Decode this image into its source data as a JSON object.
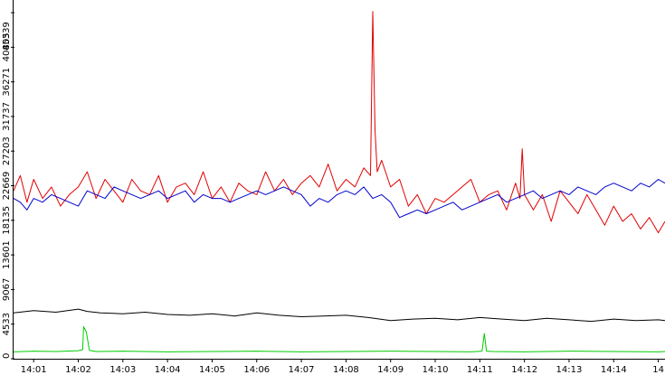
{
  "chart_data": {
    "type": "line",
    "title": "",
    "xlabel": "",
    "ylabel": "",
    "x_tick_labels": [
      "14:01",
      "14:02",
      "14:03",
      "14:04",
      "14:05",
      "14:06",
      "14:07",
      "14:08",
      "14:09",
      "14:10",
      "14:11",
      "14:12",
      "14:13",
      "14:14",
      "14"
    ],
    "x_tick_values": [
      1,
      2,
      3,
      4,
      5,
      6,
      7,
      8,
      9,
      10,
      11,
      12,
      13,
      14,
      15
    ],
    "xlim": [
      0.55,
      15.15
    ],
    "y_tick_labels": [
      "0",
      "4533",
      "9067",
      "13601",
      "18135",
      "22669",
      "27203",
      "31737",
      "36271",
      "40805",
      "45339"
    ],
    "y_tick_values": [
      0,
      4533,
      9067,
      13601,
      18135,
      22669,
      27203,
      31737,
      36271,
      40805,
      45339
    ],
    "ylim": [
      0,
      47000
    ],
    "grid": false,
    "legend": "none",
    "series": [
      {
        "color": "#e00000",
        "x": [
          0.55,
          0.7,
          0.85,
          1.0,
          1.2,
          1.4,
          1.6,
          1.8,
          2.0,
          2.2,
          2.4,
          2.6,
          2.8,
          3.0,
          3.2,
          3.4,
          3.6,
          3.8,
          4.0,
          4.2,
          4.4,
          4.6,
          4.8,
          5.0,
          5.2,
          5.4,
          5.6,
          5.8,
          6.0,
          6.2,
          6.4,
          6.6,
          6.8,
          7.0,
          7.2,
          7.4,
          7.6,
          7.8,
          8.0,
          8.2,
          8.4,
          8.55,
          8.6,
          8.65,
          8.7,
          8.8,
          9.0,
          9.2,
          9.4,
          9.6,
          9.8,
          10.0,
          10.2,
          10.4,
          10.6,
          10.8,
          11.0,
          11.2,
          11.4,
          11.6,
          11.8,
          11.9,
          11.95,
          12.0,
          12.2,
          12.4,
          12.6,
          12.8,
          13.0,
          13.2,
          13.4,
          13.6,
          13.8,
          14.0,
          14.2,
          14.4,
          14.6,
          14.8,
          15.0,
          15.15
        ],
        "y": [
          22000,
          24000,
          20500,
          23500,
          21000,
          22500,
          20000,
          21500,
          22500,
          24500,
          21000,
          23500,
          22000,
          20500,
          23500,
          22000,
          21500,
          24000,
          20500,
          22500,
          23000,
          21500,
          24500,
          21000,
          22500,
          20500,
          23000,
          22000,
          21500,
          24500,
          22000,
          23500,
          21500,
          23000,
          24000,
          22500,
          25500,
          22000,
          23500,
          22500,
          25000,
          24000,
          45500,
          30000,
          24500,
          26000,
          22500,
          23500,
          20000,
          21500,
          19000,
          21000,
          20500,
          21500,
          22500,
          23500,
          20500,
          21500,
          22000,
          19500,
          23000,
          21000,
          27500,
          21500,
          19500,
          21500,
          18000,
          22000,
          20500,
          19000,
          21500,
          19500,
          17500,
          20000,
          18000,
          19000,
          17000,
          18500,
          16500,
          18000
        ]
      },
      {
        "color": "#0000cc",
        "x": [
          0.55,
          0.7,
          0.85,
          1.0,
          1.2,
          1.4,
          1.6,
          1.8,
          2.0,
          2.2,
          2.4,
          2.6,
          2.8,
          3.0,
          3.2,
          3.4,
          3.6,
          3.8,
          4.0,
          4.2,
          4.4,
          4.6,
          4.8,
          5.0,
          5.2,
          5.4,
          5.6,
          5.8,
          6.0,
          6.2,
          6.4,
          6.6,
          6.8,
          7.0,
          7.2,
          7.4,
          7.6,
          7.8,
          8.0,
          8.2,
          8.4,
          8.6,
          8.8,
          9.0,
          9.2,
          9.4,
          9.6,
          9.8,
          10.0,
          10.2,
          10.4,
          10.6,
          10.8,
          11.0,
          11.2,
          11.4,
          11.6,
          11.8,
          12.0,
          12.2,
          12.4,
          12.6,
          12.8,
          13.0,
          13.2,
          13.4,
          13.6,
          13.8,
          14.0,
          14.2,
          14.4,
          14.6,
          14.8,
          15.0,
          15.15
        ],
        "y": [
          21000,
          20500,
          19500,
          21000,
          20500,
          21500,
          21000,
          20500,
          20000,
          22000,
          21500,
          21000,
          22500,
          22000,
          21500,
          21000,
          21500,
          22000,
          21000,
          21500,
          22000,
          20500,
          21500,
          21000,
          21000,
          20500,
          21000,
          21500,
          22000,
          21500,
          22000,
          22500,
          22000,
          21500,
          20000,
          21000,
          20500,
          21500,
          22000,
          21500,
          22500,
          21000,
          21500,
          20500,
          18500,
          19000,
          19500,
          19000,
          19500,
          20000,
          20500,
          19500,
          20000,
          20500,
          21000,
          21500,
          20500,
          21000,
          21500,
          22000,
          21000,
          21500,
          22000,
          21500,
          22500,
          22000,
          21500,
          22500,
          23000,
          22500,
          22000,
          23000,
          22500,
          23500,
          23000
        ]
      },
      {
        "color": "#000000",
        "x": [
          0.55,
          1.0,
          1.5,
          2.0,
          2.2,
          2.5,
          3.0,
          3.5,
          4.0,
          4.5,
          5.0,
          5.5,
          6.0,
          6.5,
          7.0,
          7.5,
          8.0,
          8.5,
          9.0,
          9.5,
          10.0,
          10.5,
          11.0,
          11.5,
          12.0,
          12.5,
          13.0,
          13.5,
          14.0,
          14.5,
          15.0,
          15.15
        ],
        "y": [
          6000,
          6300,
          6100,
          6500,
          6200,
          6000,
          5900,
          6100,
          5800,
          5700,
          5900,
          5600,
          6000,
          5700,
          5500,
          5600,
          5700,
          5400,
          5000,
          5200,
          5300,
          5100,
          5400,
          5200,
          5000,
          5300,
          5100,
          4900,
          5200,
          5000,
          5100,
          5000
        ]
      },
      {
        "color": "#00cc00",
        "x": [
          0.55,
          1.0,
          1.5,
          2.0,
          2.1,
          2.12,
          2.18,
          2.25,
          2.4,
          3.0,
          4.0,
          5.0,
          6.0,
          7.0,
          8.0,
          9.0,
          10.0,
          10.8,
          11.05,
          11.1,
          11.15,
          11.3,
          12.0,
          13.0,
          14.0,
          15.0,
          15.15
        ],
        "y": [
          900,
          1000,
          950,
          1050,
          1200,
          4200,
          3500,
          1100,
          950,
          1000,
          900,
          950,
          1000,
          900,
          950,
          1000,
          950,
          900,
          1000,
          3300,
          1000,
          950,
          900,
          1000,
          950,
          900,
          950
        ]
      }
    ]
  }
}
